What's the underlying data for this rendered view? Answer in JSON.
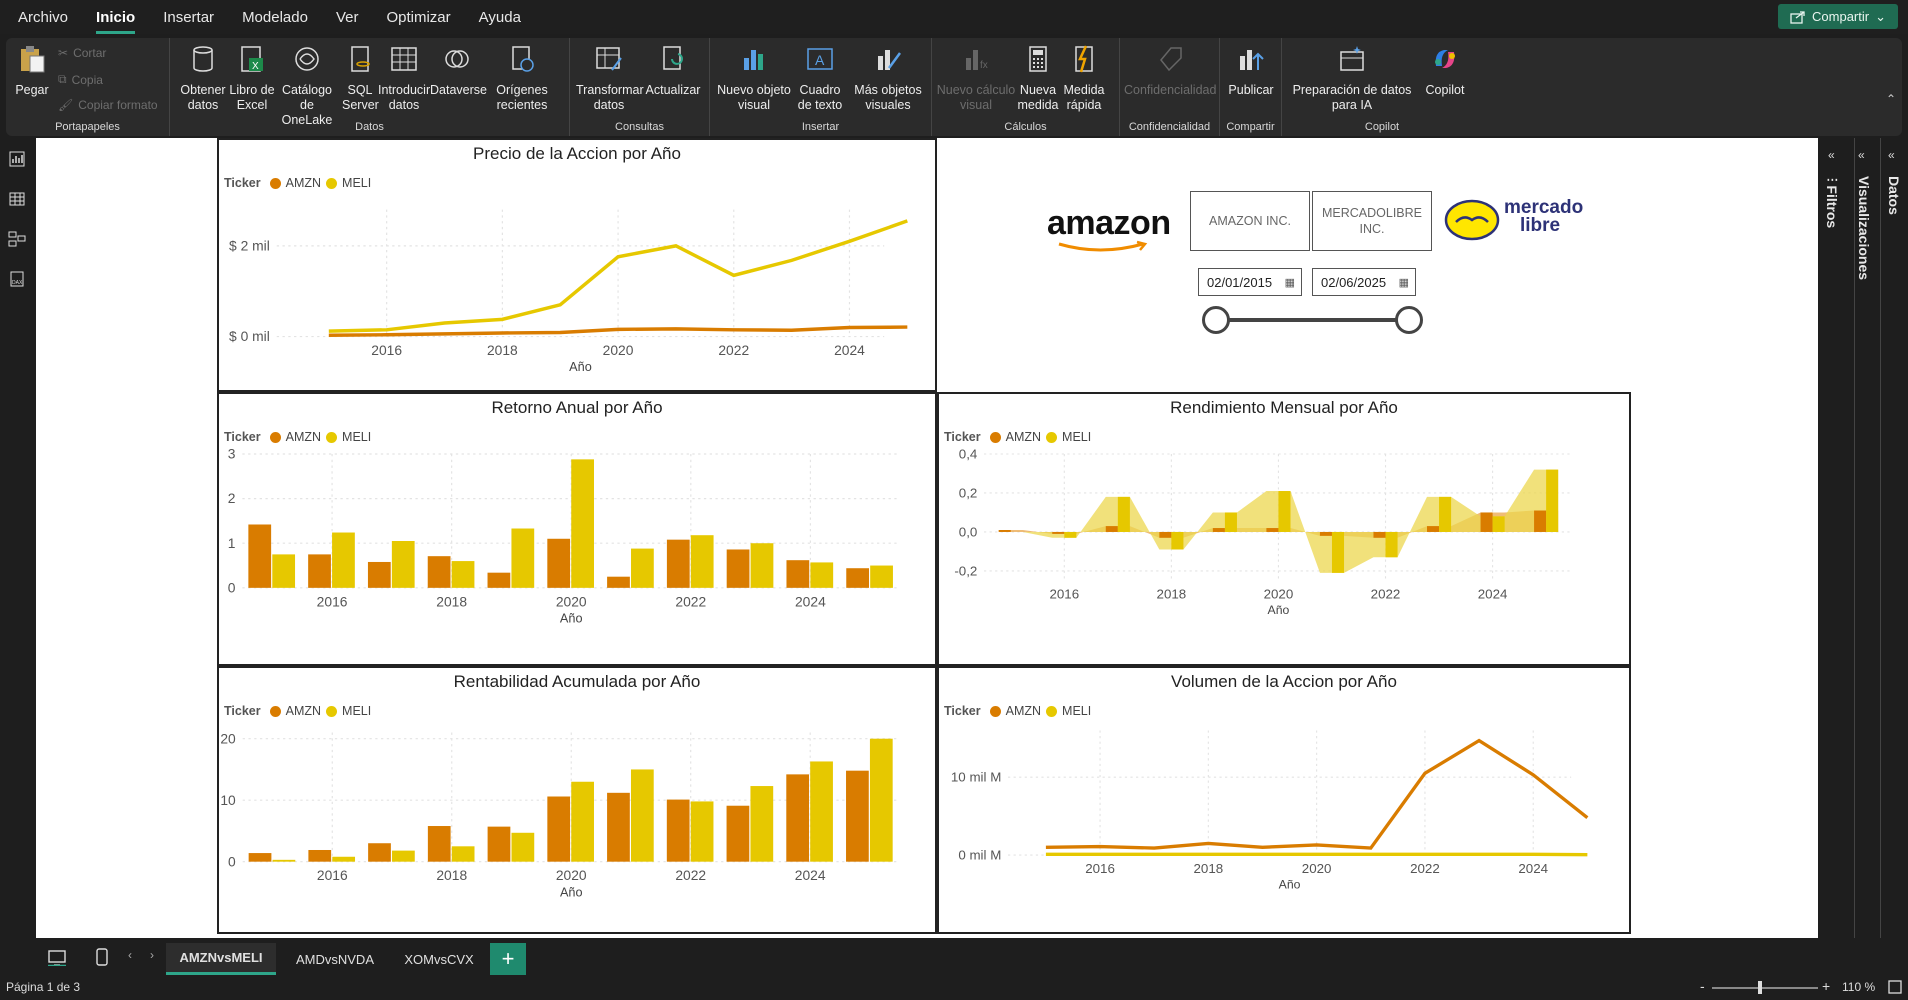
{
  "menu": {
    "items": [
      "Archivo",
      "Inicio",
      "Insertar",
      "Modelado",
      "Ver",
      "Optimizar",
      "Ayuda"
    ],
    "active": "Inicio",
    "share": "Compartir"
  },
  "ribbon": {
    "clipboard": {
      "paste": "Pegar",
      "cut": "Cortar",
      "copy": "Copia",
      "format": "Copiar formato",
      "group": "Portapapeles"
    },
    "data": {
      "get": "Obtener datos",
      "excel": "Libro de Excel",
      "onelake": "Catálogo de OneLake",
      "sql": "SQL Server",
      "enter": "Introducir datos",
      "dataverse": "Dataverse",
      "recent": "Orígenes recientes",
      "group": "Datos"
    },
    "queries": {
      "transform": "Transformar datos",
      "refresh": "Actualizar",
      "group": "Consultas"
    },
    "insert": {
      "newvisual": "Nuevo objeto visual",
      "textbox": "Cuadro de texto",
      "morevisuals": "Más objetos visuales",
      "group": "Insertar"
    },
    "calc": {
      "newcalc": "Nuevo cálculo visual",
      "newmeasure": "Nueva medida",
      "quick": "Medida rápida",
      "group": "Cálculos"
    },
    "sens": {
      "label": "Confidencialidad",
      "group": "Confidencialidad"
    },
    "share": {
      "publish": "Publicar",
      "group": "Compartir"
    },
    "copilot": {
      "prep": "Preparación de datos para IA",
      "copilot": "Copilot",
      "group": "Copilot"
    }
  },
  "colors": {
    "amzn": "#d97c00",
    "meli": "#e6c800",
    "accent": "#2ea68a"
  },
  "legend": {
    "title": "Ticker",
    "amzn": "AMZN",
    "meli": "MELI"
  },
  "slicer": {
    "amazon_logo": "amazon",
    "amazon_name": "AMAZON INC.",
    "meli_name": "MERCADOLIBRE INC.",
    "meli_logo_line1": "mercado",
    "meli_logo_line2": "libre",
    "date_start": "02/01/2015",
    "date_end": "02/06/2025"
  },
  "chart_data": [
    {
      "type": "line",
      "title": "Precio de la Accion por Año",
      "xlabel": "Año",
      "x": [
        2015,
        2016,
        2017,
        2018,
        2019,
        2020,
        2021,
        2022,
        2023,
        2024,
        2025
      ],
      "series": [
        {
          "name": "AMZN",
          "values": [
            0.03,
            0.04,
            0.06,
            0.08,
            0.09,
            0.16,
            0.17,
            0.15,
            0.14,
            0.2,
            0.21
          ]
        },
        {
          "name": "MELI",
          "values": [
            0.12,
            0.15,
            0.3,
            0.38,
            0.7,
            1.76,
            2.0,
            1.35,
            1.68,
            2.1,
            2.55
          ]
        }
      ],
      "yticks": [
        {
          "v": 0,
          "label": "$ 0 mil"
        },
        {
          "v": 2,
          "label": "$ 2 mil"
        }
      ],
      "ylim": [
        0,
        2.8
      ],
      "xticks": [
        2016,
        2018,
        2020,
        2022,
        2024
      ]
    },
    {
      "type": "bar",
      "title": "Retorno Anual por Año",
      "xlabel": "Año",
      "x": [
        2015,
        2016,
        2017,
        2018,
        2019,
        2020,
        2021,
        2022,
        2023,
        2024,
        2025
      ],
      "series": [
        {
          "name": "AMZN",
          "values": [
            1.42,
            0.75,
            0.58,
            0.71,
            0.34,
            1.1,
            0.25,
            1.08,
            0.86,
            0.62,
            0.44
          ]
        },
        {
          "name": "MELI",
          "values": [
            0.75,
            1.24,
            1.05,
            0.6,
            1.33,
            2.88,
            0.88,
            1.18,
            1.0,
            0.57,
            0.5
          ]
        }
      ],
      "yticks": [
        0,
        1,
        2,
        3
      ],
      "ylim": [
        0,
        3
      ],
      "xticks": [
        2016,
        2018,
        2020,
        2022,
        2024
      ]
    },
    {
      "type": "area",
      "title": "Rendimiento Mensual por Año",
      "xlabel": "Año",
      "x": [
        2015,
        2016,
        2017,
        2018,
        2019,
        2020,
        2021,
        2022,
        2023,
        2024,
        2025
      ],
      "series": [
        {
          "name": "AMZN",
          "values": [
            0.01,
            -0.01,
            0.03,
            -0.03,
            0.02,
            0.02,
            -0.02,
            -0.03,
            0.03,
            0.1,
            0.11
          ]
        },
        {
          "name": "MELI",
          "values": [
            0.0,
            -0.03,
            0.18,
            -0.09,
            0.1,
            0.21,
            -0.21,
            -0.13,
            0.18,
            0.08,
            0.32
          ]
        }
      ],
      "yticks": [
        {
          "v": -0.2,
          "label": "-0,2"
        },
        {
          "v": 0,
          "label": "0,0"
        },
        {
          "v": 0.2,
          "label": "0,2"
        },
        {
          "v": 0.4,
          "label": "0,4"
        }
      ],
      "ylim": [
        -0.25,
        0.4
      ],
      "xticks": [
        2016,
        2018,
        2020,
        2022,
        2024
      ]
    },
    {
      "type": "bar",
      "title": "Rentabilidad Acumulada por Año",
      "xlabel": "Año",
      "x": [
        2015,
        2016,
        2017,
        2018,
        2019,
        2020,
        2021,
        2022,
        2023,
        2024,
        2025
      ],
      "series": [
        {
          "name": "AMZN",
          "values": [
            1.4,
            1.9,
            3.0,
            5.8,
            5.7,
            10.6,
            11.2,
            10.1,
            9.1,
            14.2,
            14.8
          ]
        },
        {
          "name": "MELI",
          "values": [
            0.3,
            0.8,
            1.8,
            2.5,
            4.7,
            13.0,
            15.0,
            9.8,
            12.3,
            16.3,
            20.0
          ]
        }
      ],
      "yticks": [
        0,
        10,
        20
      ],
      "ylim": [
        0,
        21
      ],
      "xticks": [
        2016,
        2018,
        2020,
        2022,
        2024
      ]
    },
    {
      "type": "line",
      "title": "Volumen de la Accion por Año",
      "xlabel": "Año",
      "x": [
        2015,
        2016,
        2017,
        2018,
        2019,
        2020,
        2021,
        2022,
        2023,
        2024,
        2025
      ],
      "series": [
        {
          "name": "AMZN",
          "values": [
            1.0,
            1.1,
            0.9,
            1.5,
            1.0,
            1.3,
            0.9,
            10.5,
            14.7,
            10.3,
            4.8
          ]
        },
        {
          "name": "MELI",
          "values": [
            0.1,
            0.1,
            0.1,
            0.1,
            0.1,
            0.1,
            0.1,
            0.1,
            0.1,
            0.1,
            0.05
          ]
        }
      ],
      "yticks": [
        {
          "v": 0,
          "label": "0 mil M"
        },
        {
          "v": 10,
          "label": "10 mil M"
        }
      ],
      "ylim": [
        0,
        16
      ],
      "xticks": [
        2016,
        2018,
        2020,
        2022,
        2024
      ]
    }
  ],
  "right_panels": {
    "filters": "Filtros",
    "visualizations": "Visualizaciones",
    "data": "Datos"
  },
  "pages": {
    "tabs": [
      "AMZNvsMELI",
      "AMDvsNVDA",
      "XOMvsCVX"
    ],
    "active": "AMZNvsMELI",
    "add": "+"
  },
  "status": {
    "page": "Página 1 de 3",
    "zoom": "110 %"
  }
}
